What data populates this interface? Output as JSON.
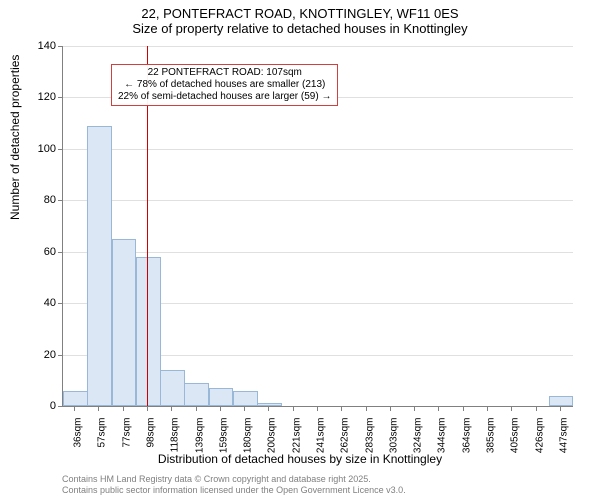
{
  "title_line1": "22, PONTEFRACT ROAD, KNOTTINGLEY, WF11 0ES",
  "title_line2": "Size of property relative to detached houses in Knottingley",
  "ylabel": "Number of detached properties",
  "xlabel": "Distribution of detached houses by size in Knottingley",
  "chart": {
    "type": "histogram",
    "ylim": [
      0,
      140
    ],
    "ytick_step": 20,
    "xlim_index": [
      0,
      21
    ],
    "xtick_labels": [
      "36sqm",
      "57sqm",
      "77sqm",
      "98sqm",
      "118sqm",
      "139sqm",
      "159sqm",
      "180sqm",
      "200sqm",
      "221sqm",
      "241sqm",
      "262sqm",
      "283sqm",
      "303sqm",
      "324sqm",
      "344sqm",
      "364sqm",
      "385sqm",
      "405sqm",
      "426sqm",
      "447sqm"
    ],
    "values": [
      6,
      109,
      65,
      58,
      14,
      9,
      7,
      6,
      1,
      0,
      0,
      0,
      0,
      0,
      0,
      0,
      0,
      0,
      0,
      0,
      4
    ],
    "bar_fill": "#dbe7f5",
    "bar_stroke": "#99b8d8",
    "grid_color": "#e0e0e0",
    "axis_color": "#808080",
    "background": "#ffffff",
    "marker_value": 107,
    "marker_color": "#d00000",
    "annotation_border": "#d04040"
  },
  "annotation": {
    "line1": "22 PONTEFRACT ROAD: 107sqm",
    "line2": "← 78% of detached houses are smaller (213)",
    "line3": "22% of semi-detached houses are larger (59) →"
  },
  "footer_line1": "Contains HM Land Registry data © Crown copyright and database right 2025.",
  "footer_line2": "Contains public sector information licensed under the Open Government Licence v3.0."
}
